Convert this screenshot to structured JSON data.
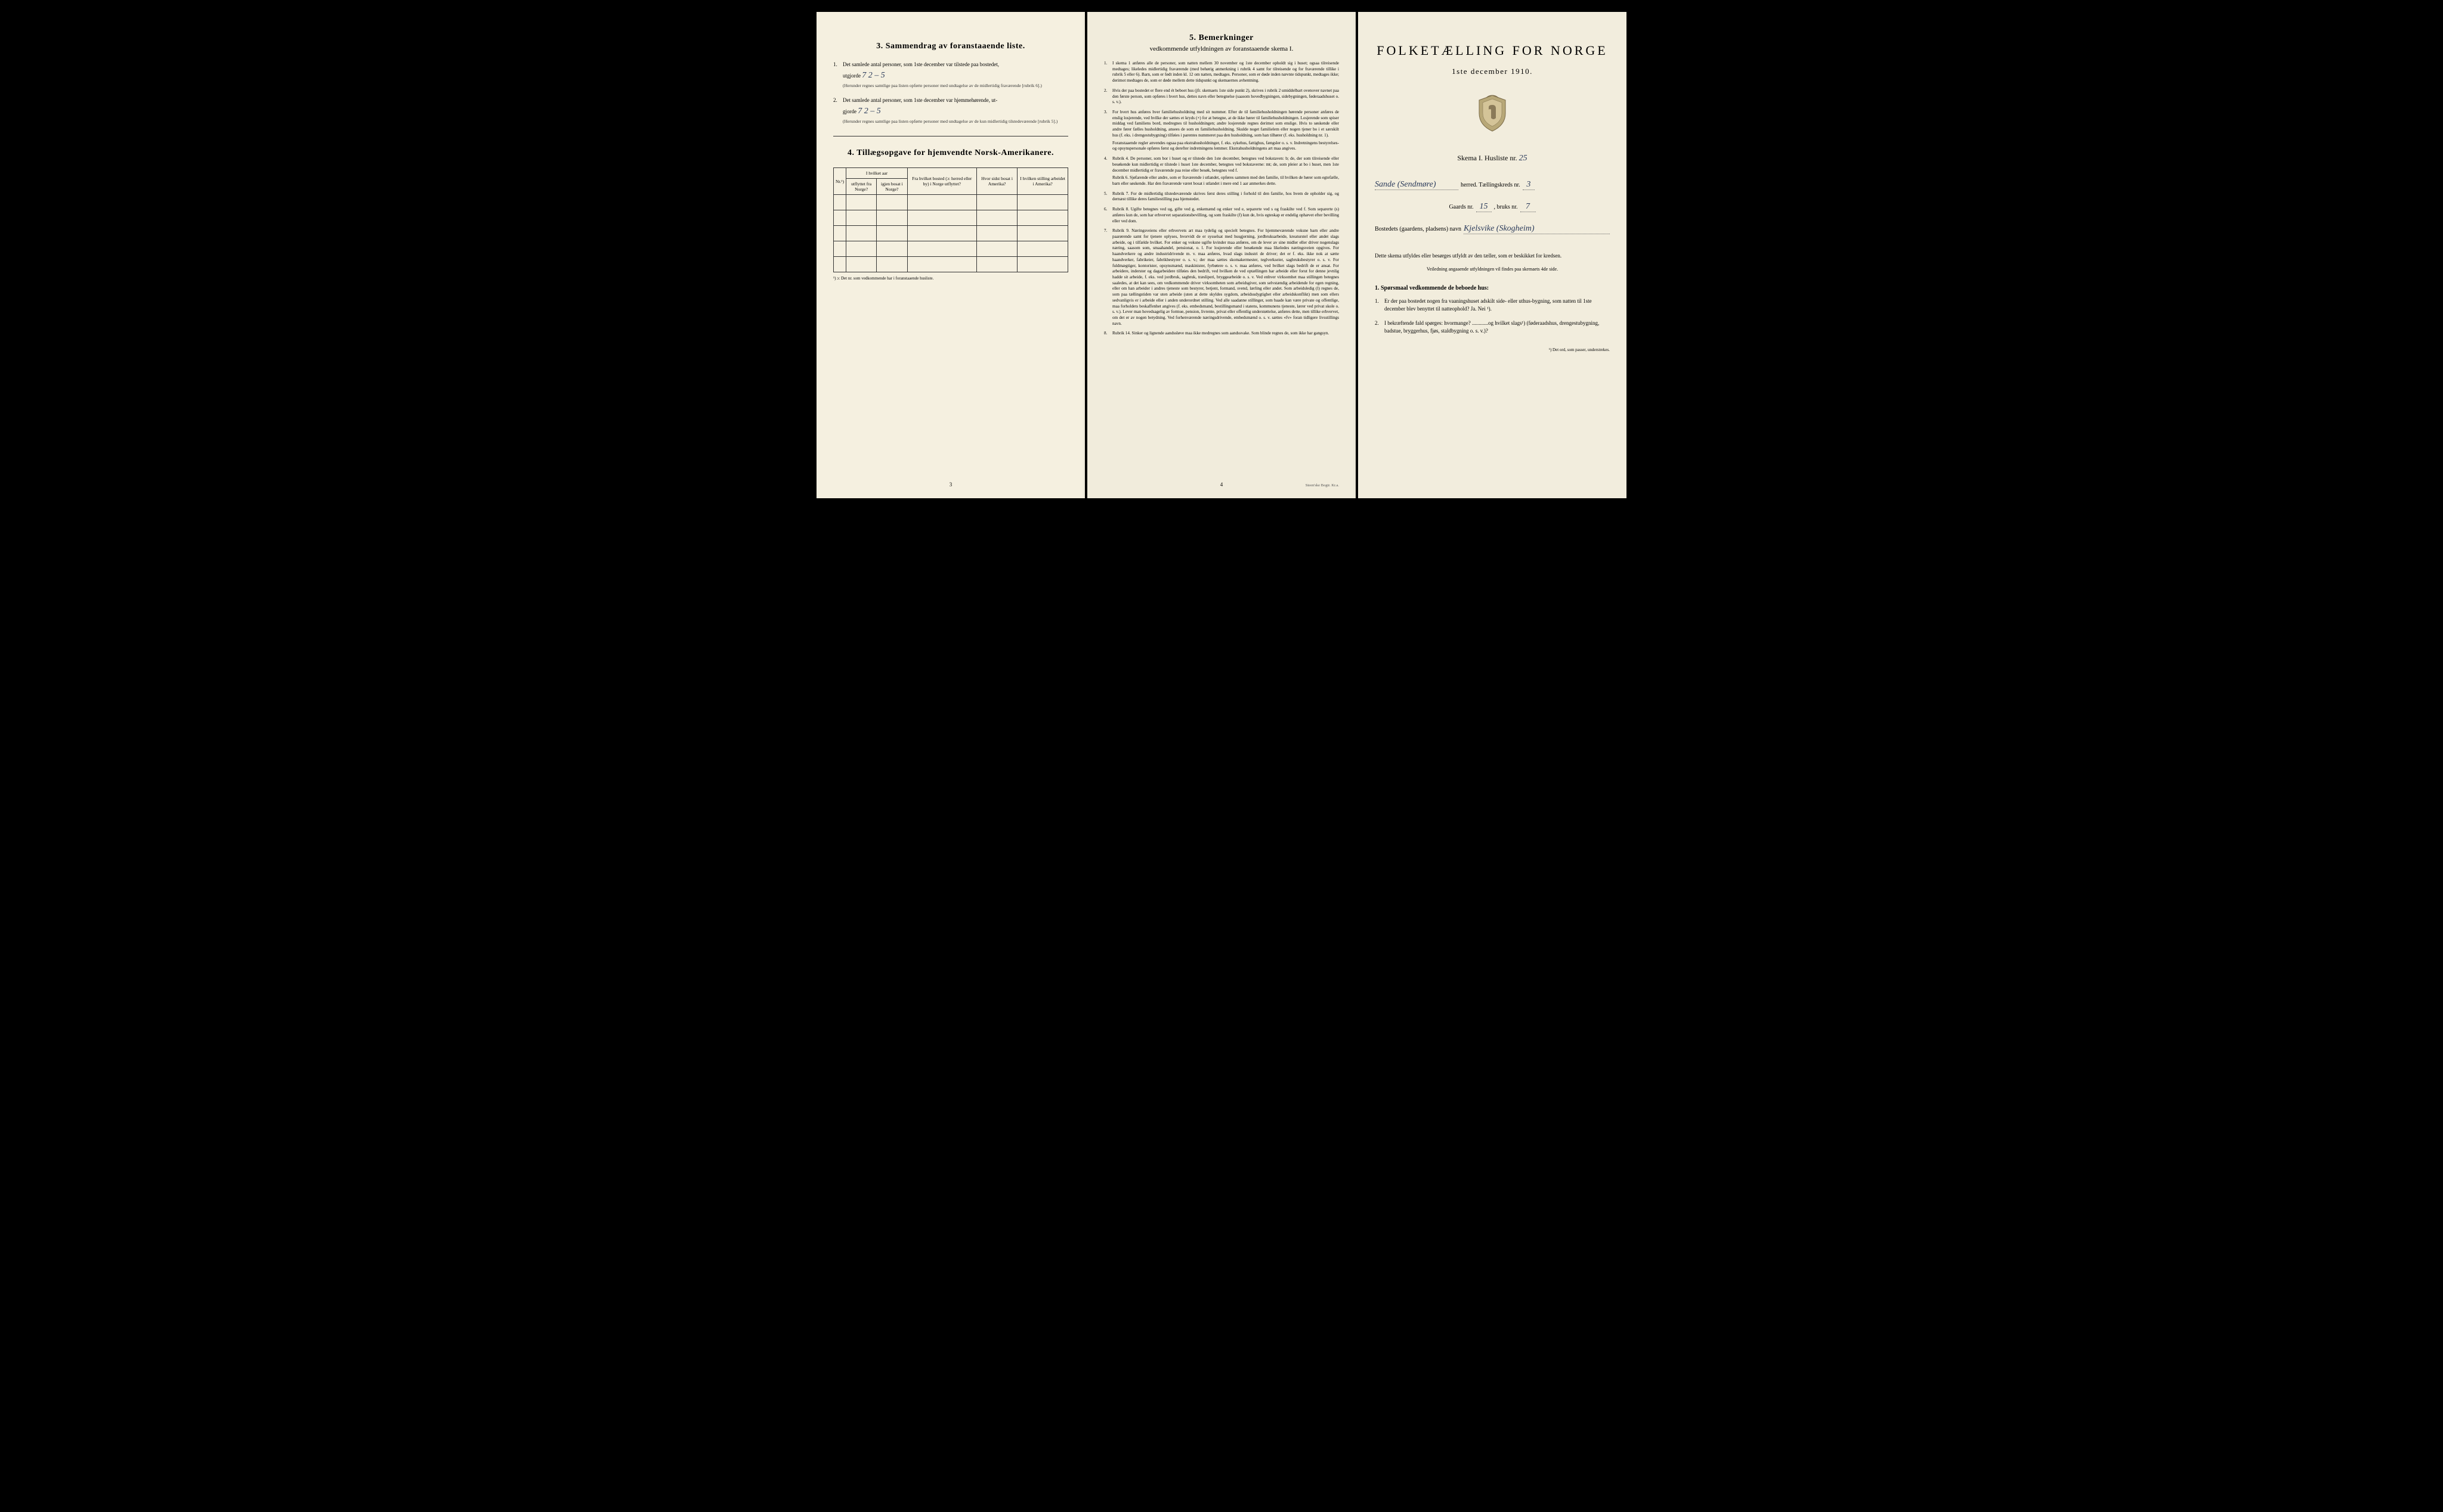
{
  "page_left": {
    "section3_title": "3.   Sammendrag av foranstaaende liste.",
    "item1_prefix": "1.",
    "item1_text": "Det samlede antal personer, som 1ste december var tilstede paa bostedet,",
    "item1_label": "utgjorde",
    "item1_handwritten": "7        2 – 5",
    "item1_note": "(Herunder regnes samtlige paa listen opførte personer med undtagelse av de midlertidig fraværende [rubrik 6].)",
    "item2_prefix": "2.",
    "item2_text": "Det samlede antal personer, som 1ste december var hjemmehørende, ut-",
    "item2_label": "gjorde",
    "item2_handwritten": "7             2 – 5",
    "item2_note": "(Herunder regnes samtlige paa listen opførte personer med undtagelse av de kun midlertidig tilstedeværende [rubrik 5].)",
    "section4_title": "4.   Tillægsopgave for hjemvendte Norsk-Amerikanere.",
    "table_headers": {
      "col1": "Nr.¹)",
      "col2a": "I hvilket aar",
      "col2b_left": "utflyttet fra Norge?",
      "col2b_right": "igjen bosat i Norge?",
      "col3": "Fra hvilket bosted (ɔ: herred eller by) i Norge utflyttet?",
      "col4": "Hvor sidst bosat i Amerika?",
      "col5": "I hvilken stilling arbeidet i Amerika?"
    },
    "table_footnote": "¹) ɔ: Det nr. som vedkommende har i foranstaaende husliste.",
    "page_num": "3"
  },
  "page_center": {
    "section5_title": "5.   Bemerkninger",
    "section5_sub": "vedkommende utfyldningen av foranstaaende skema I.",
    "remarks": [
      {
        "num": "1.",
        "text": "I skema 1 anføres alle de personer, som natten mellem 30 november og 1ste december opholdt sig i huset; ogsaa tilreisende medtages; likeledes midlertidig fraværende (med behørig anmerkning i rubrik 4 samt for tilreisende og for fraværende tillike i rubrik 5 eller 6). Barn, som er født inden kl. 12 om natten, medtages. Personer, som er døde inden nævnte tidspunkt, medtages ikke; derimot medtages de, som er døde mellem dette tidspunkt og skemaernes avhentning."
      },
      {
        "num": "2.",
        "text": "Hvis der paa bostedet er flere end ét beboet hus (jfr. skemaets 1ste side punkt 2), skrives i rubrik 2 umiddelbart ovenover navnet paa den første person, som opføres i hvert hus, dettes navn eller betegnelse (saasom hovedbygningen, sidebygningen, føderaadshuset o. s. v.)."
      },
      {
        "num": "3.",
        "text": "For hvert hus anføres hver familiehusholdning med sit nummer. Efter de til familiehusholdningen hørende personer anføres de enslig losjerende, ved hvilke der sættes et kryds (×) for at betegne, at de ikke hører til familiehusholdningen. Losjerende som spiser middag ved familiens bord, medregnes til husholdningen; andre losjerende regnes derimot som enslige. Hvis to søskende eller andre fører fælles husholdning, ansees de som en familiehusholdning. Skulde noget familielem eller nogen tjener bo i et særskilt hus (f. eks. i drengestubygning) tilføies i parentes nummeret paa den husholdning, som han tilhører (f. eks. husholdning nr. 1).",
        "sub": "Foranstaaende regler anvendes ogsaa paa ekstrahusholdninger, f. eks. sykehus, fattighus, fængsler o. s. v. Indretningens bestyrelses- og opsynspersonale opføres først og derefter indretningens lemmer. Ekstrahusholdningens art maa angives."
      },
      {
        "num": "4.",
        "text": "Rubrik 4. De personer, som bor i huset og er tilstede den 1ste december, betegnes ved bokstaven: b; de, der som tilreisende eller besøkende kun midlertidig er tilstede i huset 1ste december, betegnes ved bokstaverne: mt; de, som pleier at bo i huset, men 1ste december midlertidig er fraværende paa reise eller besøk, betegnes ved f.",
        "sub": "Rubrik 6. Sjøfarende eller andre, som er fraværende i utlandet, opføres sammen med den familie, til hvilken de hører som egtefælle, barn eller søskende. Har den fraværende været bosat i utlandet i mere end 1 aar anmerkes dette."
      },
      {
        "num": "5.",
        "text": "Rubrik 7. For de midlertidig tilstedeværende skrives først deres stilling i forhold til den familie, hos hvem de opholder sig, og dernæst tillike deres familiestilling paa hjemstedet."
      },
      {
        "num": "6.",
        "text": "Rubrik 8. Ugifte betegnes ved ug, gifte ved g, enkemænd og enker ved e, separerte ved s og fraskilte ved f. Som separerte (s) anføres kun de, som har erhvervet separationsbevilling, og som fraskilte (f) kun de, hvis egteskap er endelig ophævet efter bevilling eller ved dom."
      },
      {
        "num": "7.",
        "text": "Rubrik 9. Næringsveiens eller erhvervets art maa tydelig og specielt betegnes. For hjemmeværende voksne barn eller andre paarørende samt for tjenere oplyses, hvorvidt de er sysselsat med husgjerning, jordbruksarbeide, kreaturstel eller andet slags arbeide, og i tilfælde hvilket. For enker og voksne ugifte kvinder maa anføres, om de lever av sine midler eller driver nogenslags næring, saasom som, smaahandel, pensionat, o. l. For losjerende eller besøkende maa likeledes næringsveien opgives. For haandverkere og andre industridrivende m. v. maa anføres, hvad slags industri de driver; det er f. eks. ikke nok at sætte haandverker, fabrikeier, fabrikbestyrer o. s. v.; der maa sættes skomakermester, teglverkseier, sagbruksbestyrer o. s. v. For fuldmægtiger, kontorister, opsynsmænd, maskinister, fyrbøtere o. s. v. maa anføres, ved hvilket slags bedrift de er ansat. For arbeidere, inderster og dagarbeidere tilføies den bedrift, ved hvilken de ved optællingen har arbeide eller forut for denne jevnlig hadde sit arbeide, f. eks. ved jordbruk, sagbruk, træsliperi, bryggearbeide o. s. v. Ved enhver virksomhet maa stillingen betegnes saaledes, at det kan sees, om vedkommende driver virksomheten som arbeidsgiver, som selvstændig arbeidende for egen regning, eller om han arbeider i andres tjeneste som bestyrer, betjent, formand, svend, lærling eller andet. Som arbeidsledig (l) regnes de, som paa tællingstiden var uten arbeide (uten at dette skyldes sygdom, arbeidsudygtighet eller arbeidskonflikt) men som ellers sedvanligvis er i arbeide eller i anden underordnet stilling. Ved alle saadanne stillinger, som baade kan være private og offentlige, maa forholdets beskaffenhet angives (f. eks. embedsmand, bestillingsmand i statens, kommunens tjeneste, lærer ved privat skole o. s. v.). Lever man hovedsagelig av formue, pension, livrente, privat eller offentlig understøttelse, anføres dette, men tillike erhvervet, om det er av nogen betydning. Ved forhenværende næringsdrivende, embedsmænd o. s. v. sættes «fv» foran tidligere livsstillings navn."
      },
      {
        "num": "8.",
        "text": "Rubrik 14. Sinker og lignende aandssløve maa ikke medregnes som aandssvake. Som blinde regnes de, som ikke har gangsyn."
      }
    ],
    "page_num": "4",
    "printer": "Steen'ske Bogtr.   Kr.a."
  },
  "page_right": {
    "main_title": "FOLKETÆLLING FOR NORGE",
    "date": "1ste december 1910.",
    "skema_label": "Skema I.   Husliste nr.",
    "skema_value": "25",
    "herred_value": "Sande (Sendmøre)",
    "herred_label": "herred.   Tællingskreds nr.",
    "kreds_value": "3",
    "gaards_label": "Gaards nr.",
    "gaards_value": "15",
    "bruks_label": ", bruks nr.",
    "bruks_value": "7",
    "bosted_label": "Bostedets (gaardens, pladsens) navn",
    "bosted_value": "Kjelsvike (Skogheim)",
    "instruction": "Dette skema utfyldes eller besørges utfyldt av den tæller, som er beskikket for kredsen.",
    "instruction_sub": "Veiledning angaaende utfyldningen vil findes paa skemaets 4de side.",
    "q_header": "1. Spørsmaal vedkommende de beboede hus:",
    "q1_num": "1.",
    "q1_text": "Er der paa bostedet nogen fra vaaningshuset adskilt side- eller uthus-bygning, som natten til 1ste december blev benyttet til natteophold?   Ja.   Nei ¹).",
    "q2_num": "2.",
    "q2_text": "I bekræftende fald spørges: hvormange? ............og hvilket slags¹) (føderaadshus, drengestubygning, badstue, bryggerhus, fjøs, staldbygning o. s. v.)?",
    "footnote": "¹) Det ord, som passer, understrekes."
  }
}
